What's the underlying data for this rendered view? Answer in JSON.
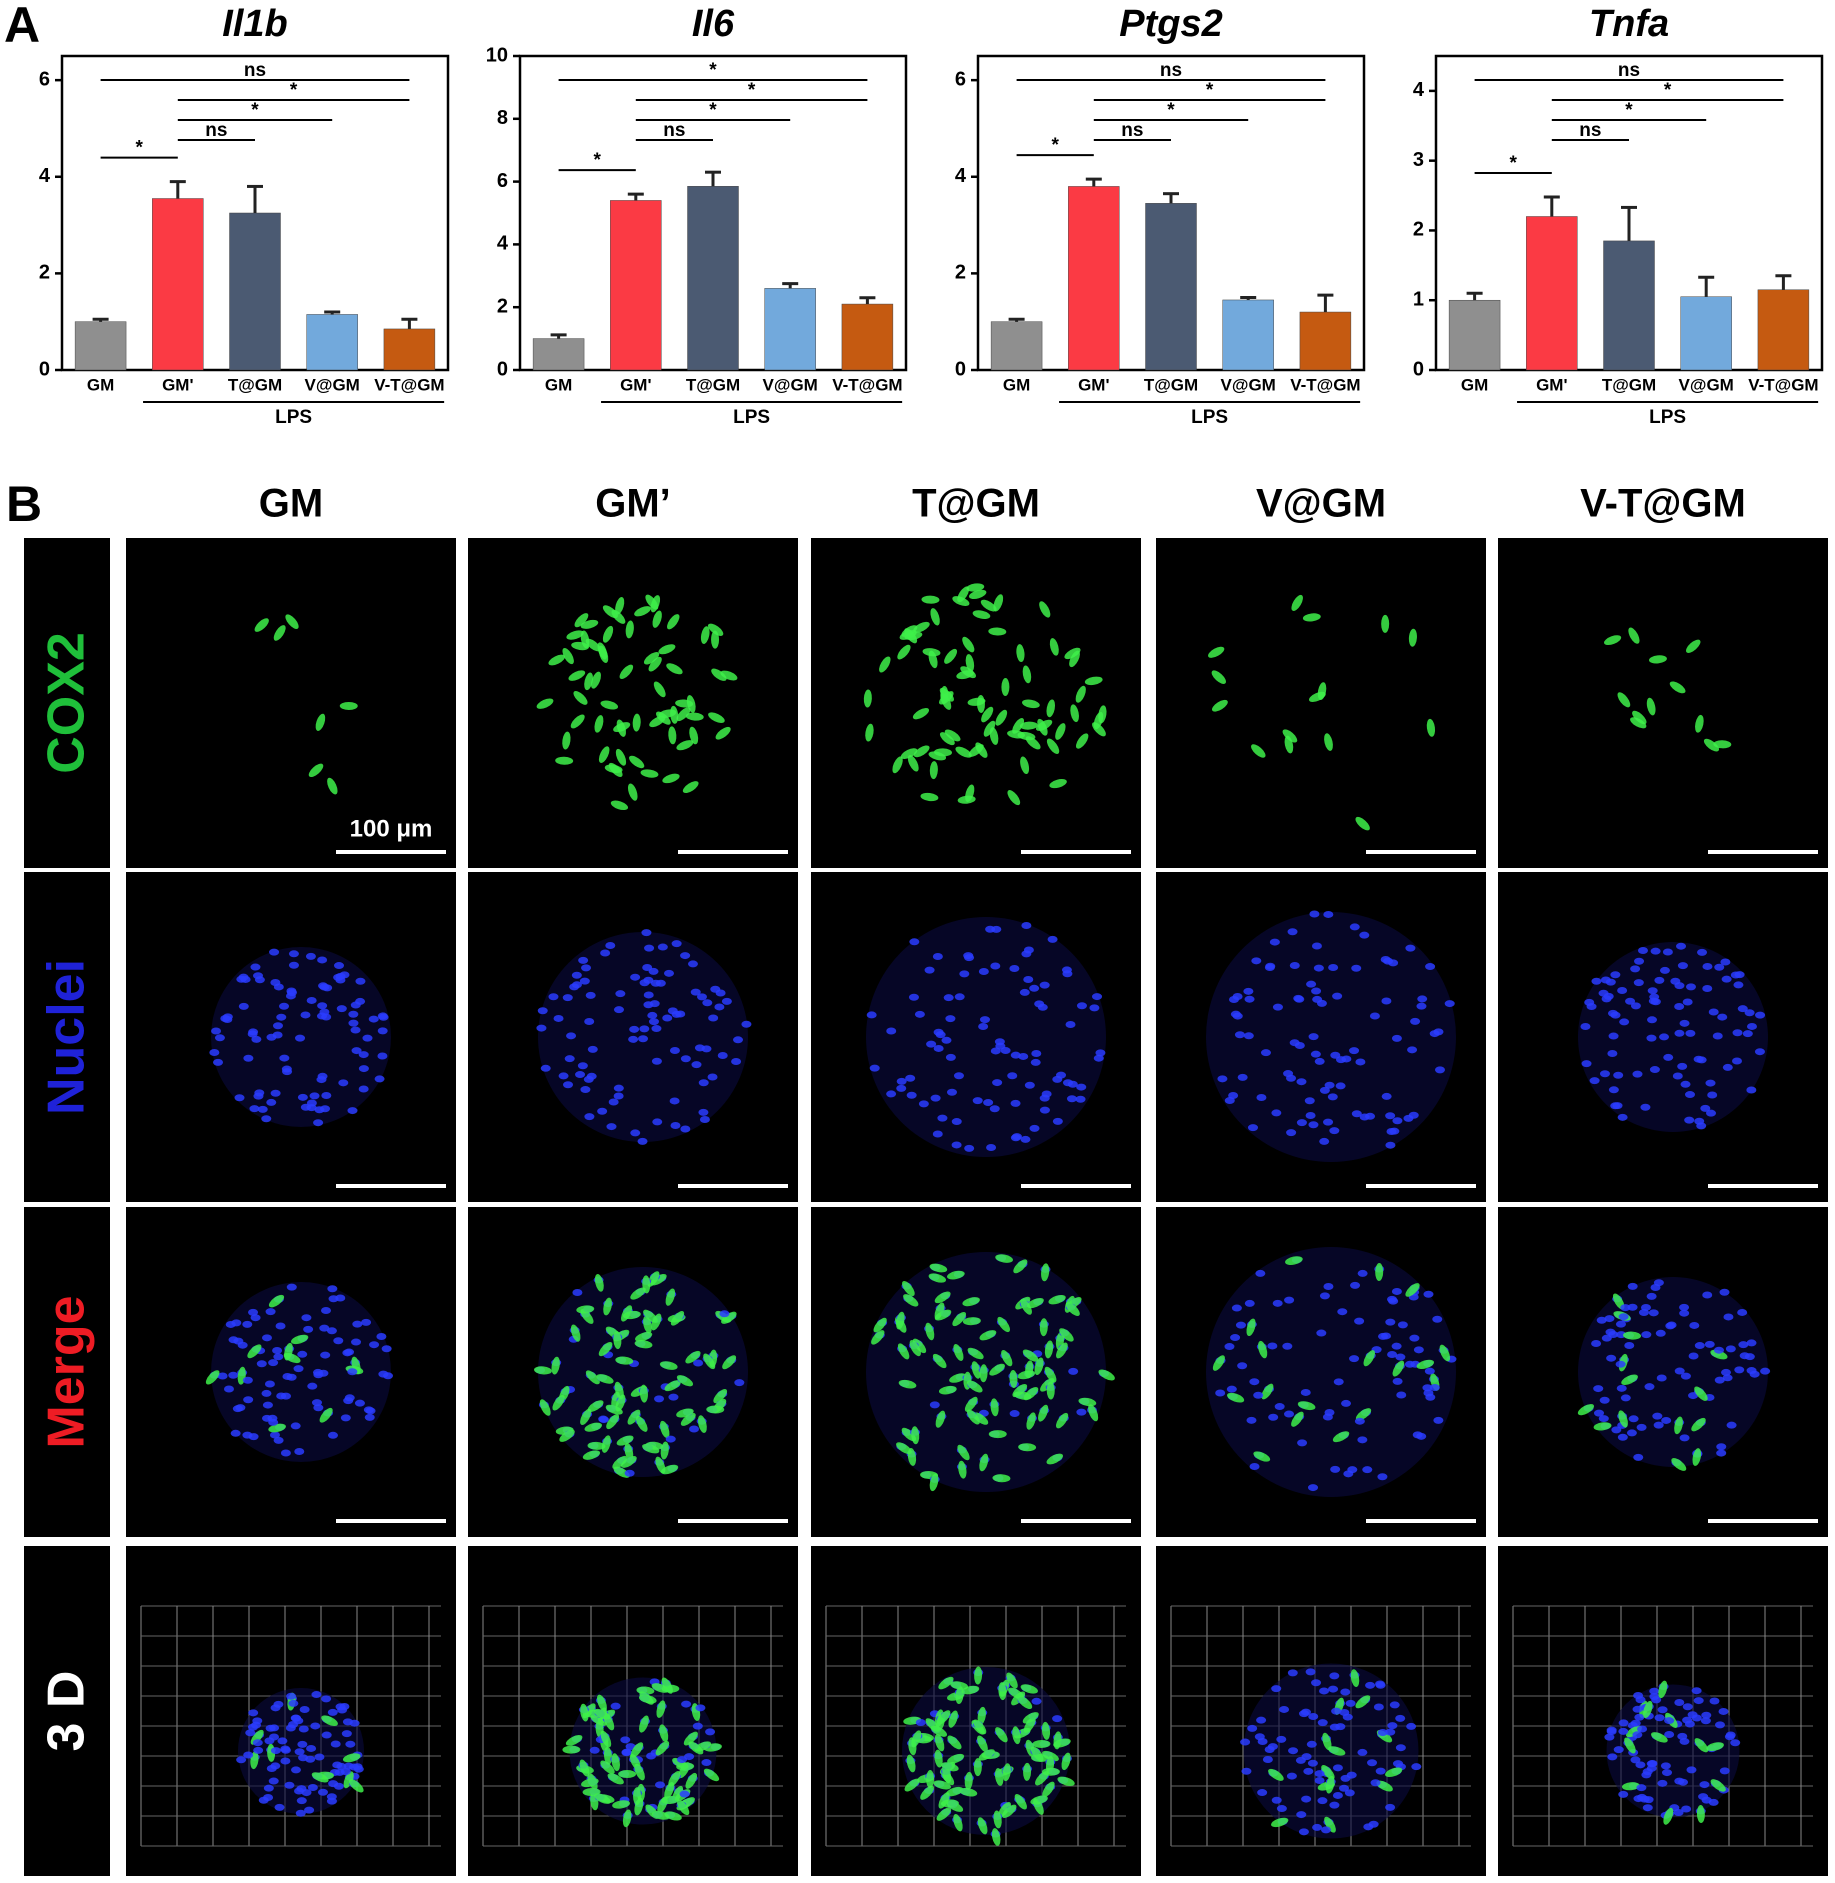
{
  "panel_a_label": "A",
  "chart_data": [
    {
      "type": "bar",
      "title": "Il1b",
      "categories": [
        "GM",
        "GM'",
        "T@GM",
        "V@GM",
        "V-T@GM"
      ],
      "values": [
        1.0,
        3.55,
        3.25,
        1.15,
        0.85
      ],
      "errors": [
        0.05,
        0.35,
        0.55,
        0.05,
        0.2
      ],
      "colors": [
        "#8f8f8f",
        "#fb3a44",
        "#4b5a72",
        "#72a9dc",
        "#c55a11"
      ],
      "ylim": [
        0,
        6.5
      ],
      "yticks": [
        0,
        2,
        4,
        6
      ],
      "group": {
        "label": "LPS",
        "from": 1,
        "to": 4
      },
      "significance": [
        {
          "from": 0,
          "to": 4,
          "label": "ns"
        },
        {
          "from": 1,
          "to": 4,
          "label": "*"
        },
        {
          "from": 1,
          "to": 3,
          "label": "*"
        },
        {
          "from": 1,
          "to": 2,
          "label": "ns"
        },
        {
          "from": 0,
          "to": 1,
          "label": "*"
        }
      ]
    },
    {
      "type": "bar",
      "title": "Il6",
      "categories": [
        "GM",
        "GM'",
        "T@GM",
        "V@GM",
        "V-T@GM"
      ],
      "values": [
        1.0,
        5.4,
        5.85,
        2.6,
        2.1
      ],
      "errors": [
        0.12,
        0.2,
        0.45,
        0.15,
        0.2
      ],
      "colors": [
        "#8f8f8f",
        "#fb3a44",
        "#4b5a72",
        "#72a9dc",
        "#c55a11"
      ],
      "ylim": [
        0,
        10
      ],
      "yticks": [
        0,
        2,
        4,
        6,
        8,
        10
      ],
      "group": {
        "label": "LPS",
        "from": 1,
        "to": 4
      },
      "significance": [
        {
          "from": 0,
          "to": 4,
          "label": "*"
        },
        {
          "from": 1,
          "to": 4,
          "label": "*"
        },
        {
          "from": 1,
          "to": 3,
          "label": "*"
        },
        {
          "from": 1,
          "to": 2,
          "label": "ns"
        },
        {
          "from": 0,
          "to": 1,
          "label": "*"
        }
      ]
    },
    {
      "type": "bar",
      "title": "Ptgs2",
      "categories": [
        "GM",
        "GM'",
        "T@GM",
        "V@GM",
        "V-T@GM"
      ],
      "values": [
        1.0,
        3.8,
        3.45,
        1.45,
        1.2
      ],
      "errors": [
        0.05,
        0.15,
        0.2,
        0.05,
        0.35
      ],
      "colors": [
        "#8f8f8f",
        "#fb3a44",
        "#4b5a72",
        "#72a9dc",
        "#c55a11"
      ],
      "ylim": [
        0,
        6.5
      ],
      "yticks": [
        0,
        2,
        4,
        6
      ],
      "group": {
        "label": "LPS",
        "from": 1,
        "to": 4
      },
      "significance": [
        {
          "from": 0,
          "to": 4,
          "label": "ns"
        },
        {
          "from": 1,
          "to": 4,
          "label": "*"
        },
        {
          "from": 1,
          "to": 3,
          "label": "*"
        },
        {
          "from": 1,
          "to": 2,
          "label": "ns"
        },
        {
          "from": 0,
          "to": 1,
          "label": "*"
        }
      ]
    },
    {
      "type": "bar",
      "title": "Tnfa",
      "categories": [
        "GM",
        "GM'",
        "T@GM",
        "V@GM",
        "V-T@GM"
      ],
      "values": [
        1.0,
        2.2,
        1.85,
        1.05,
        1.15
      ],
      "errors": [
        0.1,
        0.28,
        0.48,
        0.28,
        0.2
      ],
      "colors": [
        "#8f8f8f",
        "#fb3a44",
        "#4b5a72",
        "#72a9dc",
        "#c55a11"
      ],
      "ylim": [
        0,
        4.5
      ],
      "yticks": [
        0,
        1,
        2,
        3,
        4
      ],
      "group": {
        "label": "LPS",
        "from": 1,
        "to": 4
      },
      "significance": [
        {
          "from": 0,
          "to": 4,
          "label": "ns"
        },
        {
          "from": 1,
          "to": 4,
          "label": "*"
        },
        {
          "from": 1,
          "to": 3,
          "label": "*"
        },
        {
          "from": 1,
          "to": 2,
          "label": "ns"
        },
        {
          "from": 0,
          "to": 1,
          "label": "*"
        }
      ]
    }
  ],
  "panel_b": {
    "label": "B",
    "columns": [
      "GM",
      "GM’",
      "T@GM",
      "V@GM",
      "V-T@GM"
    ],
    "rows": [
      "COX2",
      "Nuclei",
      "Merge",
      "3 D"
    ],
    "scale_bar": "100 μm"
  }
}
